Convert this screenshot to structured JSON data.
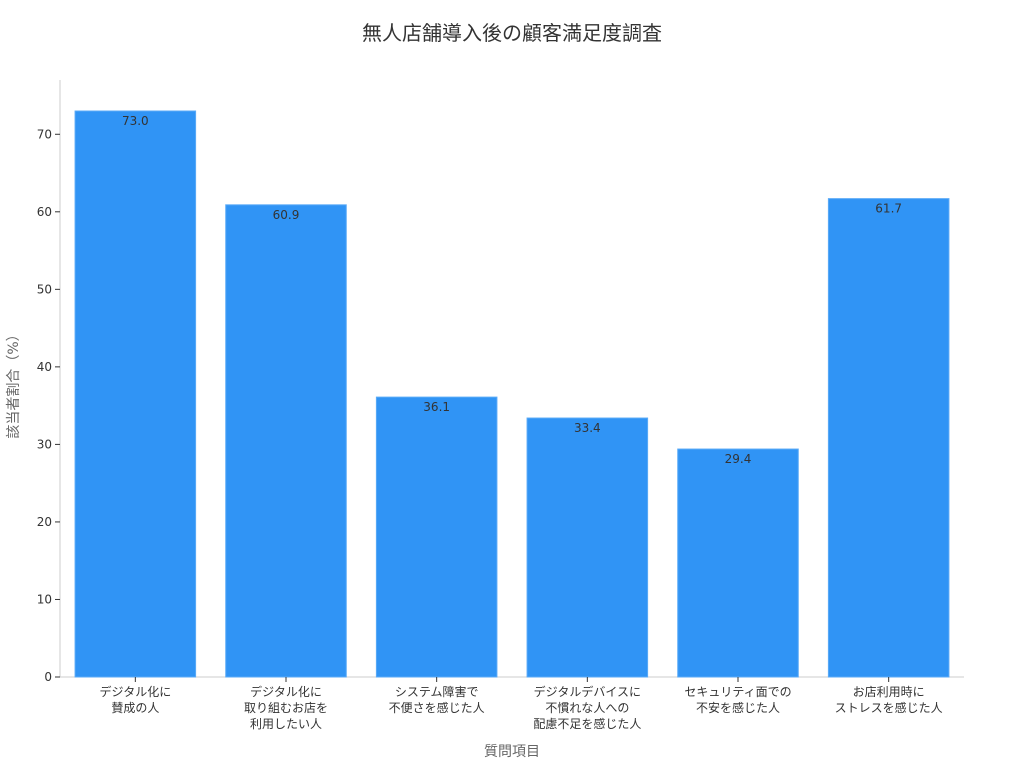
{
  "chart_data": {
    "type": "bar",
    "title": "無人店舗導入後の顧客満足度調査",
    "xlabel": "質問項目",
    "ylabel": "該当者割合（%）",
    "categories": [
      [
        "デジタル化に",
        "賛成の人"
      ],
      [
        "デジタル化に",
        "取り組むお店を",
        "利用したい人"
      ],
      [
        "システム障害で",
        "不便さを感じた人"
      ],
      [
        "デジタルデバイスに",
        "不慣れな人への",
        "配慮不足を感じた人"
      ],
      [
        "セキュリティ面での",
        "不安を感じた人"
      ],
      [
        "お店利用時に",
        "ストレスを感じた人"
      ]
    ],
    "values": [
      73.0,
      60.9,
      36.1,
      33.4,
      29.4,
      61.7
    ],
    "ylim": [
      0,
      77
    ],
    "yticks": [
      0,
      10,
      20,
      30,
      40,
      50,
      60,
      70
    ],
    "bar_color": "#3094f5",
    "grid": false,
    "legend": "none"
  }
}
